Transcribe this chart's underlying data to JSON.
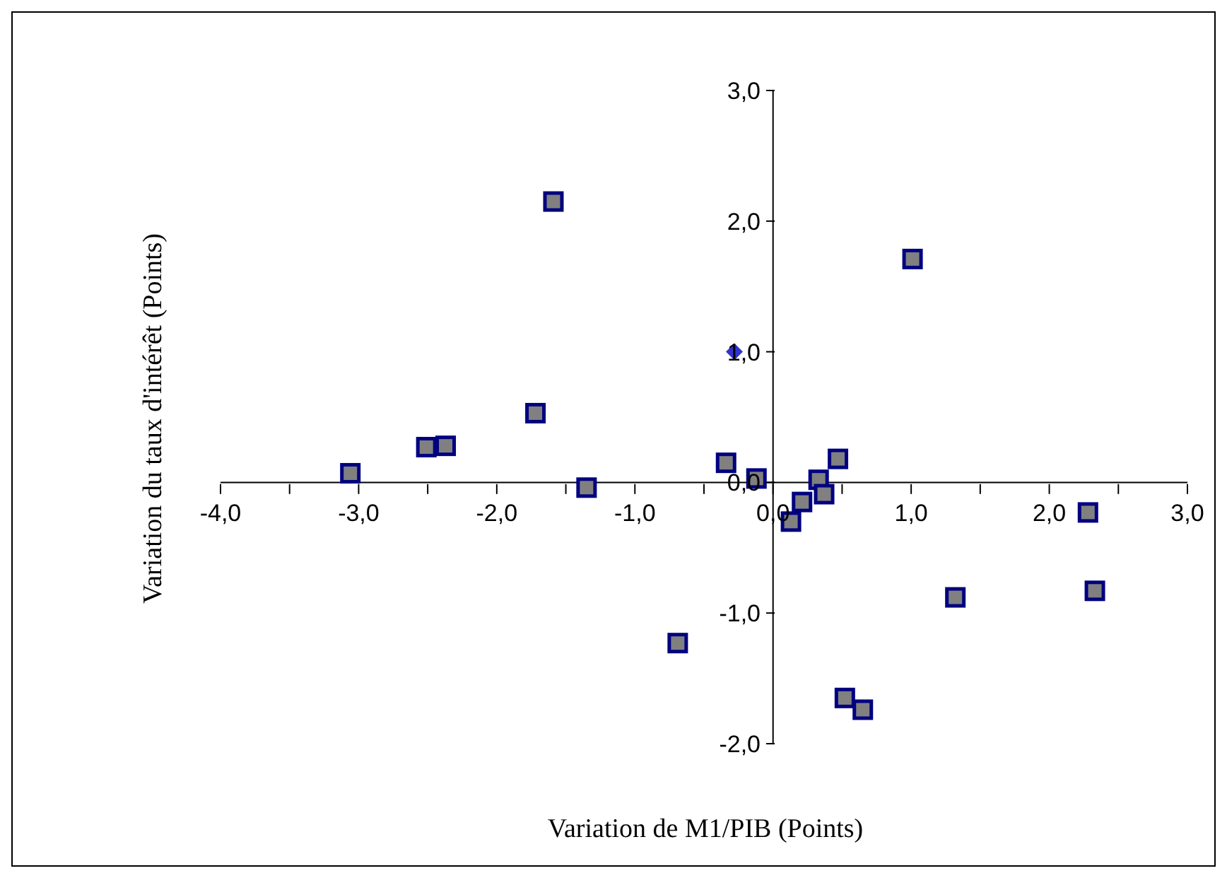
{
  "chart_data": {
    "type": "scatter",
    "xlabel": "Variation de M1/PIB (Points)",
    "ylabel": "Variation du taux d'intérêt (Points)",
    "xlim": [
      -4,
      3
    ],
    "ylim": [
      -2,
      3
    ],
    "xticks": [
      {
        "value": -4,
        "label": "-4,0"
      },
      {
        "value": -3.5,
        "label": null
      },
      {
        "value": -3,
        "label": "-3,0"
      },
      {
        "value": -2.5,
        "label": null
      },
      {
        "value": -2,
        "label": "-2,0"
      },
      {
        "value": -1.5,
        "label": null
      },
      {
        "value": -1,
        "label": "-1,0"
      },
      {
        "value": -0.5,
        "label": null
      },
      {
        "value": 0,
        "label": "0,0"
      },
      {
        "value": 0.5,
        "label": null
      },
      {
        "value": 1,
        "label": "1,0"
      },
      {
        "value": 1.5,
        "label": null
      },
      {
        "value": 2,
        "label": "2,0"
      },
      {
        "value": 2.5,
        "label": null
      },
      {
        "value": 3,
        "label": "3,0"
      }
    ],
    "yticks": [
      {
        "value": -2,
        "label": "-2,0"
      },
      {
        "value": -1,
        "label": "-1,0"
      },
      {
        "value": 0,
        "label": "0,0"
      },
      {
        "value": 1,
        "label": "1,0"
      },
      {
        "value": 2,
        "label": "2,0"
      },
      {
        "value": 3,
        "label": "3,0"
      }
    ],
    "grid": false,
    "series": [
      {
        "color": "#808080",
        "marker": "square",
        "x": [
          -3.06,
          -2.51,
          -2.37,
          -1.72,
          -1.59,
          -1.35,
          -0.34,
          -0.12,
          -0.69,
          0.13,
          0.21,
          0.33,
          0.37,
          0.47,
          0.52,
          0.65,
          1.01,
          1.32,
          2.28,
          2.33
        ],
        "values": [
          0.07,
          0.27,
          0.28,
          0.53,
          2.15,
          -0.04,
          0.15,
          0.03,
          -1.23,
          -0.3,
          -0.15,
          0.02,
          -0.09,
          0.18,
          -1.65,
          -1.74,
          1.71,
          -0.88,
          -0.23,
          -0.83
        ]
      },
      {
        "color": "#3333cc",
        "marker": "diamond",
        "x": [
          -0.28
        ],
        "values": [
          1.0
        ]
      }
    ]
  }
}
